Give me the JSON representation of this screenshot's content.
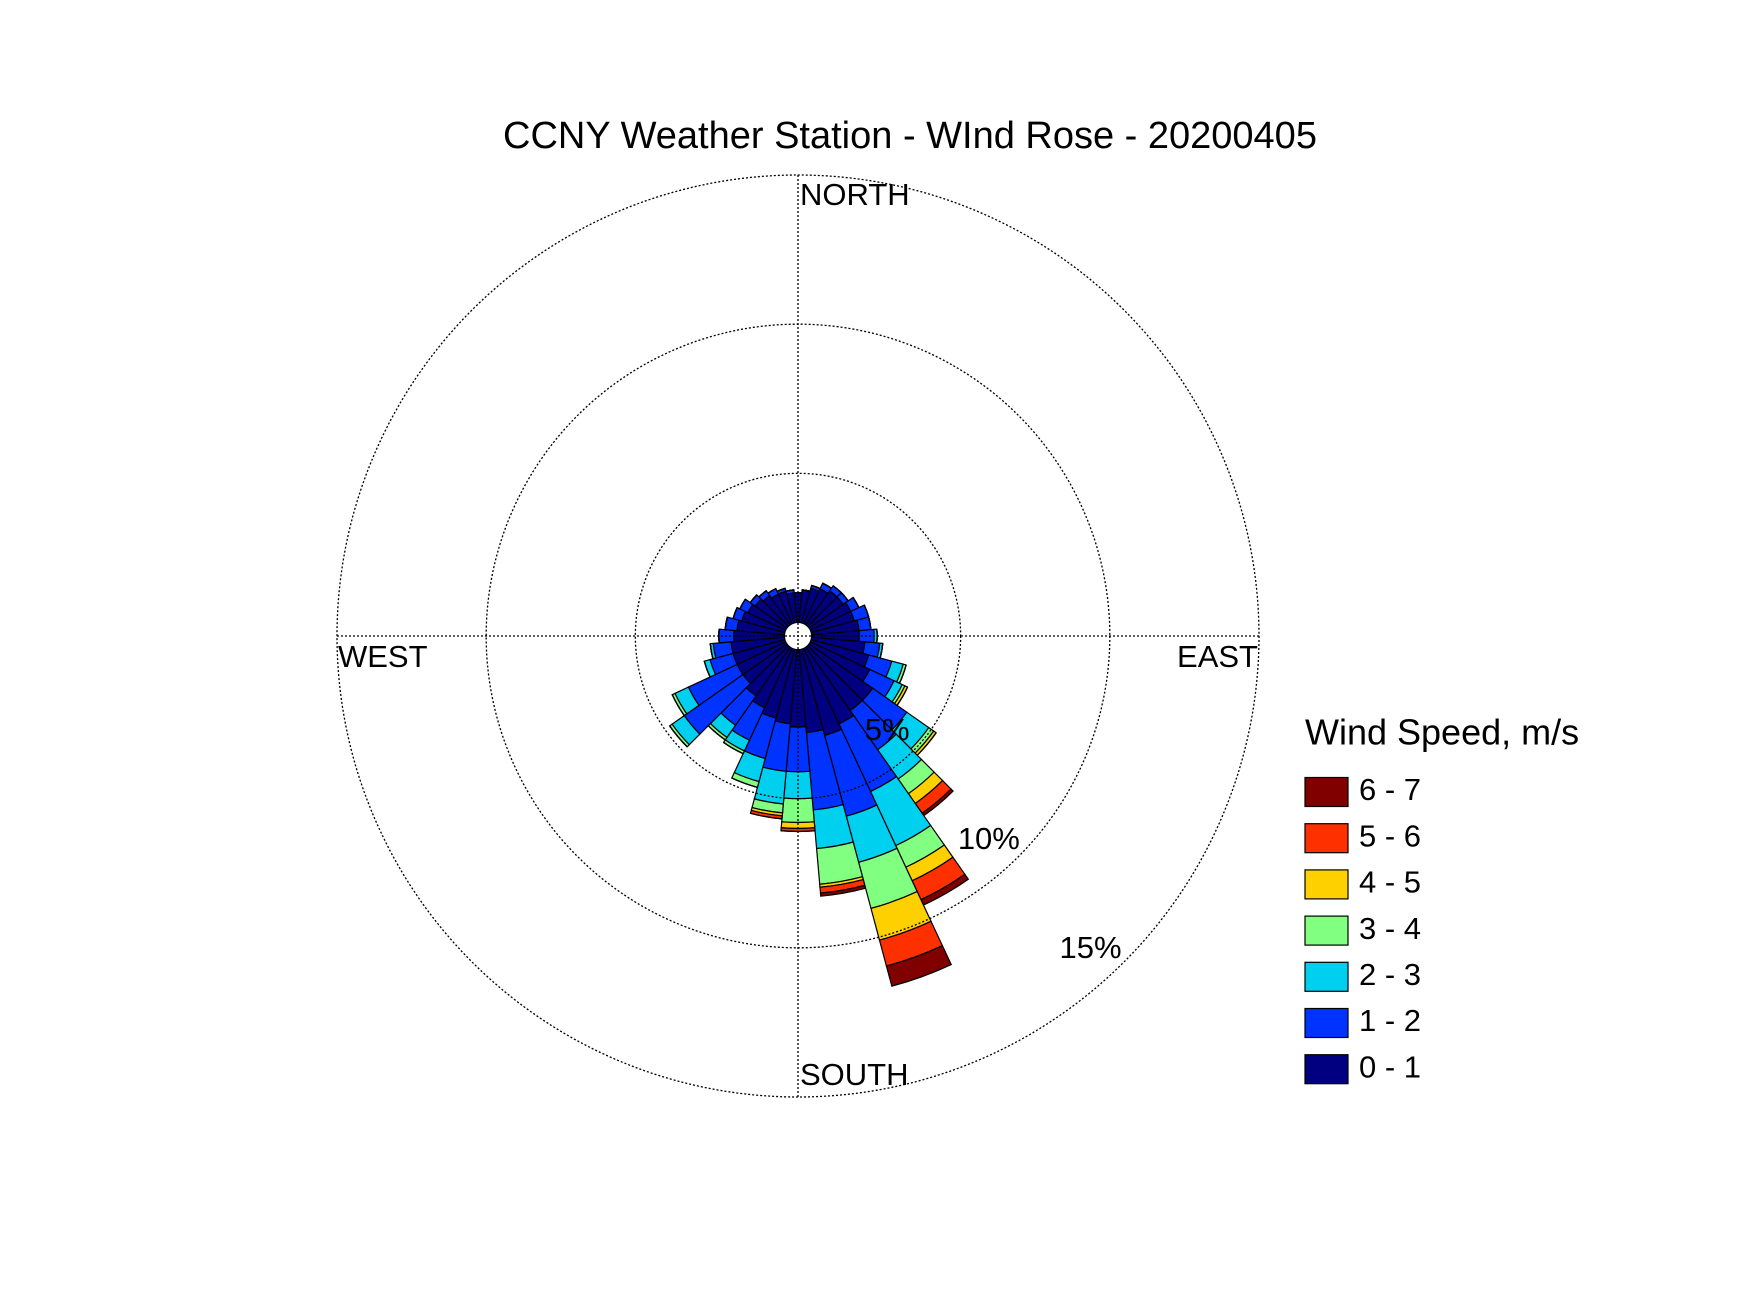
{
  "chart_data": {
    "type": "windrose",
    "title": "CCNY Weather Station - WInd Rose - 20200405",
    "direction_labels": [
      "NORTH",
      "EAST",
      "SOUTH",
      "WEST"
    ],
    "directions": [
      0,
      10,
      20,
      30,
      40,
      50,
      60,
      70,
      80,
      90,
      100,
      110,
      120,
      130,
      140,
      150,
      160,
      170,
      180,
      190,
      200,
      210,
      220,
      230,
      240,
      250,
      260,
      270,
      280,
      290,
      300,
      310,
      320,
      330,
      340,
      350
    ],
    "rlim": [
      0,
      15
    ],
    "rticks": [
      {
        "value": 5,
        "label": "5%"
      },
      {
        "value": 10,
        "label": "10%"
      },
      {
        "value": 15,
        "label": "15%"
      }
    ],
    "grid": true,
    "legend_title": "Wind Speed, m/s",
    "series": [
      {
        "name": "0 - 1",
        "color": "#000080",
        "values": [
          1.0,
          1.1,
          1.2,
          1.3,
          1.4,
          1.4,
          1.5,
          1.5,
          1.6,
          1.6,
          1.8,
          2.0,
          2.2,
          2.6,
          2.6,
          2.8,
          3.0,
          2.8,
          2.6,
          2.5,
          2.4,
          2.2,
          2.0,
          1.8,
          1.8,
          1.8,
          1.8,
          1.7,
          1.6,
          1.5,
          1.4,
          1.3,
          1.2,
          1.1,
          1.1,
          1.0
        ]
      },
      {
        "name": "1 - 2",
        "color": "#0033ff",
        "values": [
          0,
          0,
          0.1,
          0.2,
          0.2,
          0.2,
          0.3,
          0.5,
          0.4,
          0.5,
          0.5,
          0.8,
          0.9,
          1.4,
          1.6,
          2.5,
          2.8,
          2.6,
          1.5,
          1.6,
          1.4,
          1.2,
          1.2,
          2.4,
          1.8,
          0.8,
          0.6,
          0.5,
          0.4,
          0.3,
          0.3,
          0.2,
          0.2,
          0.2,
          0.1,
          0.1
        ]
      },
      {
        "name": "2 - 3",
        "color": "#00d0f0",
        "values": [
          0,
          0,
          0,
          0,
          0,
          0,
          0,
          0,
          0,
          0.1,
          0.1,
          0.4,
          0.3,
          0.9,
          1.2,
          2.0,
          1.6,
          1.3,
          0.9,
          1.1,
          0.8,
          0.4,
          0.5,
          0.5,
          0.5,
          0.2,
          0.1,
          0,
          0,
          0,
          0,
          0,
          0,
          0,
          0,
          0
        ]
      },
      {
        "name": "3 - 4",
        "color": "#80ff80",
        "values": [
          0,
          0,
          0,
          0,
          0,
          0,
          0,
          0,
          0,
          0,
          0,
          0.1,
          0.1,
          0.2,
          0.6,
          0.8,
          1.6,
          1.2,
          0.8,
          0.3,
          0.2,
          0.1,
          0.1,
          0.1,
          0.1,
          0,
          0,
          0,
          0,
          0,
          0,
          0,
          0,
          0,
          0,
          0
        ]
      },
      {
        "name": "4 - 5",
        "color": "#ffd000",
        "values": [
          0,
          0,
          0,
          0,
          0,
          0,
          0,
          0,
          0,
          0,
          0,
          0,
          0.1,
          0.1,
          0.4,
          0.5,
          1.1,
          0.1,
          0.2,
          0.1,
          0,
          0,
          0,
          0,
          0,
          0,
          0,
          0,
          0,
          0,
          0,
          0,
          0,
          0,
          0,
          0
        ]
      },
      {
        "name": "5 - 6",
        "color": "#ff3000",
        "values": [
          0,
          0,
          0,
          0,
          0,
          0,
          0,
          0,
          0,
          0,
          0,
          0,
          0,
          0,
          0.4,
          0.7,
          0.9,
          0.2,
          0.1,
          0.1,
          0,
          0,
          0,
          0,
          0,
          0,
          0,
          0,
          0,
          0,
          0,
          0,
          0,
          0,
          0,
          0
        ]
      },
      {
        "name": "6 - 7",
        "color": "#800000",
        "values": [
          0,
          0,
          0,
          0,
          0,
          0,
          0,
          0,
          0,
          0,
          0,
          0,
          0,
          0,
          0.1,
          0.2,
          0.7,
          0.1,
          0,
          0,
          0,
          0,
          0,
          0,
          0,
          0,
          0,
          0,
          0,
          0,
          0,
          0,
          0,
          0,
          0,
          0
        ]
      }
    ]
  }
}
